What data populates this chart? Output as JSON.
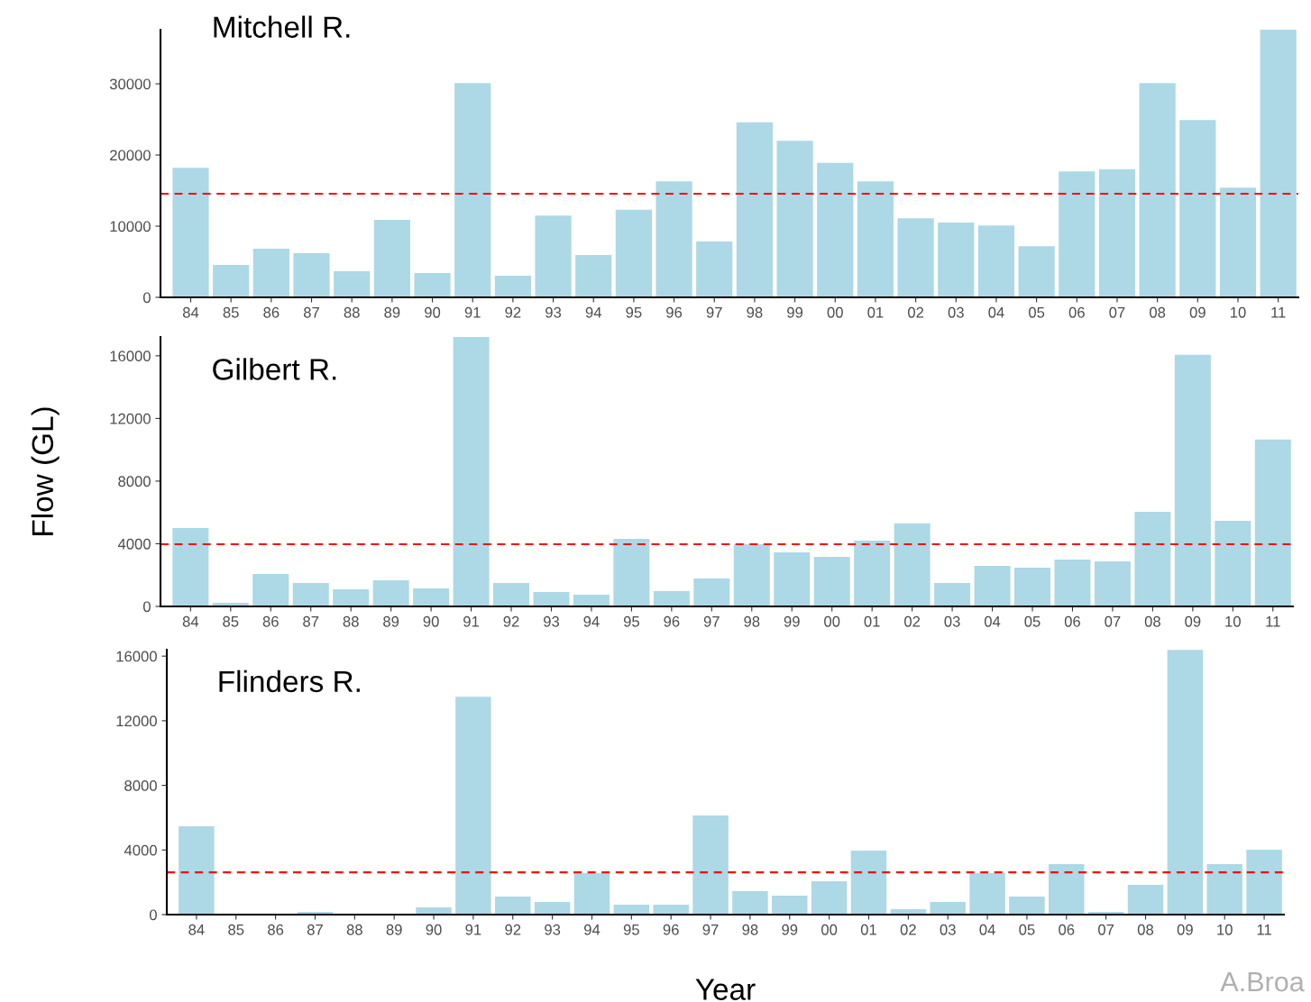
{
  "chart_data": [
    {
      "type": "bar",
      "title": "Mitchell R.",
      "categories": [
        "84",
        "85",
        "86",
        "87",
        "88",
        "89",
        "90",
        "91",
        "92",
        "93",
        "94",
        "95",
        "96",
        "97",
        "98",
        "99",
        "00",
        "01",
        "02",
        "03",
        "04",
        "05",
        "06",
        "07",
        "08",
        "09",
        "10",
        "11"
      ],
      "values": [
        18200,
        4560,
        6840,
        6200,
        3670,
        10900,
        3420,
        30100,
        3040,
        11500,
        5950,
        12300,
        16300,
        7850,
        24600,
        22000,
        18900,
        16300,
        11100,
        10500,
        10100,
        7200,
        17700,
        18000,
        30100,
        24900,
        15400,
        37600
      ],
      "color": "#add8e6",
      "ylim": [
        0,
        37600
      ],
      "yticks": [
        0,
        10000,
        20000,
        30000
      ],
      "grid": false,
      "ref_lines": [
        {
          "axis": "y",
          "value": 14560,
          "color": "#ff0000",
          "line_style": "dashed"
        }
      ]
    },
    {
      "type": "bar",
      "title": "Gilbert R.",
      "ylabel": "Flow (GL)",
      "categories": [
        "84",
        "85",
        "86",
        "87",
        "88",
        "89",
        "90",
        "91",
        "92",
        "93",
        "94",
        "95",
        "96",
        "97",
        "98",
        "99",
        "00",
        "01",
        "02",
        "03",
        "04",
        "05",
        "06",
        "07",
        "08",
        "09",
        "10",
        "11"
      ],
      "values": [
        5010,
        230,
        2070,
        1500,
        1090,
        1670,
        1150,
        17200,
        1500,
        920,
        750,
        4320,
        980,
        1780,
        3970,
        3450,
        3170,
        4200,
        5300,
        1500,
        2590,
        2470,
        2990,
        2880,
        6040,
        16060,
        5470,
        10650
      ],
      "color": "#add8e6",
      "ylim": [
        0,
        17200
      ],
      "yticks": [
        0,
        4000,
        8000,
        12000,
        16000
      ],
      "grid": false,
      "ref_lines": [
        {
          "axis": "y",
          "value": 3970,
          "color": "#ff0000",
          "line_style": "dashed"
        }
      ]
    },
    {
      "type": "bar",
      "title": "Flinders R.",
      "xlabel": "Year",
      "annotations": [
        "A.Broa"
      ],
      "categories": [
        "84",
        "85",
        "86",
        "87",
        "88",
        "89",
        "90",
        "91",
        "92",
        "93",
        "94",
        "95",
        "96",
        "97",
        "98",
        "99",
        "00",
        "01",
        "02",
        "03",
        "04",
        "05",
        "06",
        "07",
        "08",
        "09",
        "10",
        "11"
      ],
      "values": [
        5460,
        0,
        0,
        170,
        0,
        60,
        450,
        13490,
        1110,
        780,
        2560,
        610,
        610,
        6130,
        1450,
        1170,
        2060,
        3960,
        330,
        780,
        2560,
        1110,
        3120,
        170,
        1840,
        16390,
        3120,
        4010
      ],
      "color": "#add8e6",
      "ylim": [
        0,
        16400
      ],
      "yticks": [
        0,
        4000,
        8000,
        12000,
        16000
      ],
      "grid": false,
      "ref_lines": [
        {
          "axis": "y",
          "value": 2620,
          "color": "#ff0000",
          "line_style": "dashed"
        }
      ]
    }
  ]
}
